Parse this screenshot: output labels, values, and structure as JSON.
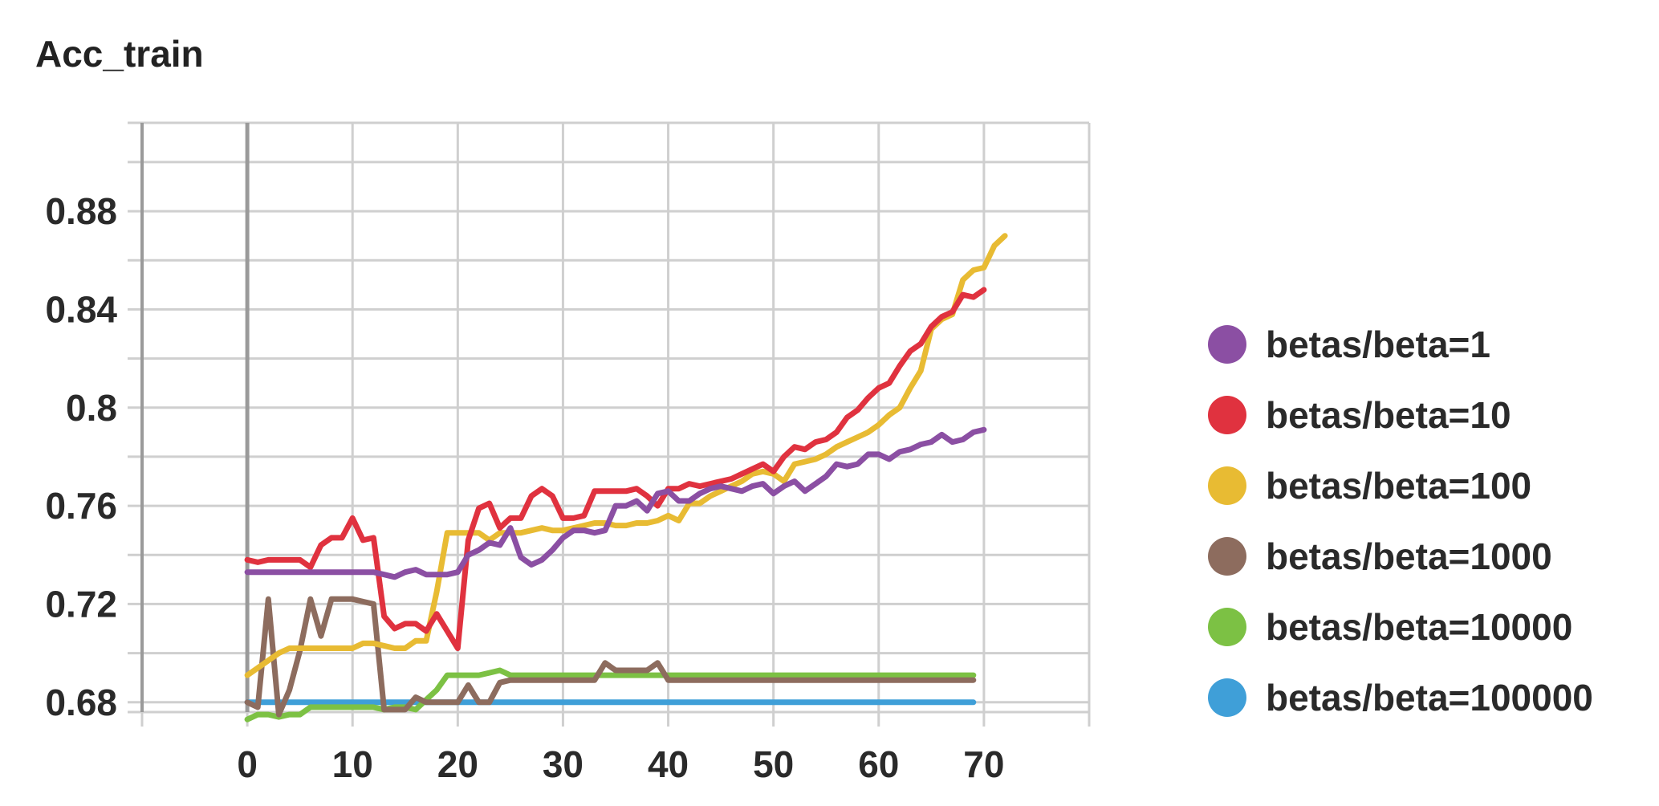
{
  "chart_data": {
    "type": "line",
    "title": "Acc_train",
    "xlabel": "",
    "ylabel": "",
    "xlim": [
      -10,
      80
    ],
    "ylim": [
      0.676,
      0.916
    ],
    "xticks": [
      0,
      10,
      20,
      30,
      40,
      50,
      60,
      70
    ],
    "xtick_labels": [
      "0",
      "10",
      "20",
      "30",
      "40",
      "50",
      "60",
      "70"
    ],
    "yticks": [
      0.68,
      0.72,
      0.76,
      0.8,
      0.84,
      0.88
    ],
    "ytick_labels": [
      "0.68",
      "0.72",
      "0.76",
      "0.8",
      "0.84",
      "0.88"
    ],
    "grid": true,
    "legend_position": "right",
    "series": [
      {
        "name": "betas/beta=1",
        "color": "#8b4fa3",
        "x0": 0,
        "values": [
          0.733,
          0.733,
          0.733,
          0.733,
          0.733,
          0.733,
          0.733,
          0.733,
          0.733,
          0.733,
          0.733,
          0.733,
          0.733,
          0.732,
          0.731,
          0.733,
          0.734,
          0.732,
          0.732,
          0.732,
          0.733,
          0.74,
          0.742,
          0.745,
          0.744,
          0.751,
          0.739,
          0.736,
          0.738,
          0.742,
          0.747,
          0.75,
          0.75,
          0.749,
          0.75,
          0.76,
          0.76,
          0.762,
          0.758,
          0.765,
          0.766,
          0.762,
          0.762,
          0.765,
          0.767,
          0.768,
          0.767,
          0.766,
          0.768,
          0.769,
          0.765,
          0.768,
          0.77,
          0.766,
          0.769,
          0.772,
          0.777,
          0.776,
          0.777,
          0.781,
          0.781,
          0.779,
          0.782,
          0.783,
          0.785,
          0.786,
          0.789,
          0.786,
          0.787,
          0.79,
          0.791
        ]
      },
      {
        "name": "betas/beta=10",
        "color": "#e0323f",
        "x0": 0,
        "values": [
          0.738,
          0.737,
          0.738,
          0.738,
          0.738,
          0.738,
          0.735,
          0.744,
          0.747,
          0.747,
          0.755,
          0.746,
          0.747,
          0.715,
          0.71,
          0.712,
          0.712,
          0.709,
          0.716,
          0.709,
          0.702,
          0.746,
          0.759,
          0.761,
          0.751,
          0.755,
          0.755,
          0.764,
          0.767,
          0.764,
          0.755,
          0.755,
          0.756,
          0.766,
          0.766,
          0.766,
          0.766,
          0.767,
          0.764,
          0.76,
          0.767,
          0.767,
          0.769,
          0.768,
          0.769,
          0.77,
          0.771,
          0.773,
          0.775,
          0.777,
          0.774,
          0.78,
          0.784,
          0.783,
          0.786,
          0.787,
          0.79,
          0.796,
          0.799,
          0.804,
          0.808,
          0.81,
          0.817,
          0.823,
          0.826,
          0.833,
          0.837,
          0.839,
          0.846,
          0.845,
          0.848
        ]
      },
      {
        "name": "betas/beta=100",
        "color": "#e8bb33",
        "x0": 0,
        "values": [
          0.691,
          0.694,
          0.697,
          0.7,
          0.702,
          0.702,
          0.702,
          0.702,
          0.702,
          0.702,
          0.702,
          0.704,
          0.704,
          0.703,
          0.702,
          0.702,
          0.705,
          0.705,
          0.725,
          0.749,
          0.749,
          0.749,
          0.749,
          0.746,
          0.749,
          0.749,
          0.749,
          0.75,
          0.751,
          0.75,
          0.75,
          0.751,
          0.752,
          0.753,
          0.753,
          0.752,
          0.752,
          0.753,
          0.753,
          0.754,
          0.756,
          0.754,
          0.761,
          0.761,
          0.764,
          0.766,
          0.768,
          0.77,
          0.773,
          0.774,
          0.773,
          0.77,
          0.777,
          0.778,
          0.779,
          0.781,
          0.784,
          0.786,
          0.788,
          0.79,
          0.793,
          0.797,
          0.8,
          0.808,
          0.815,
          0.832,
          0.836,
          0.838,
          0.852,
          0.856,
          0.857,
          0.866,
          0.87
        ]
      },
      {
        "name": "betas/beta=1000",
        "color": "#8d6c5e",
        "x0": 0,
        "values": [
          0.68,
          0.678,
          0.722,
          0.675,
          0.685,
          0.701,
          0.722,
          0.707,
          0.722,
          0.722,
          0.722,
          0.721,
          0.72,
          0.677,
          0.677,
          0.677,
          0.682,
          0.68,
          0.68,
          0.68,
          0.68,
          0.687,
          0.68,
          0.68,
          0.688,
          0.689,
          0.689,
          0.689,
          0.689,
          0.689,
          0.689,
          0.689,
          0.689,
          0.689,
          0.696,
          0.693,
          0.693,
          0.693,
          0.693,
          0.696,
          0.689,
          0.689,
          0.689,
          0.689,
          0.689,
          0.689,
          0.689,
          0.689,
          0.689,
          0.689,
          0.689,
          0.689,
          0.689,
          0.689,
          0.689,
          0.689,
          0.689,
          0.689,
          0.689,
          0.689,
          0.689,
          0.689,
          0.689,
          0.689,
          0.689,
          0.689,
          0.689,
          0.689,
          0.689,
          0.689
        ]
      },
      {
        "name": "betas/beta=10000",
        "color": "#7cc144",
        "x0": 0,
        "values": [
          0.673,
          0.675,
          0.675,
          0.674,
          0.675,
          0.675,
          0.678,
          0.678,
          0.678,
          0.678,
          0.678,
          0.678,
          0.678,
          0.677,
          0.678,
          0.678,
          0.677,
          0.681,
          0.685,
          0.691,
          0.691,
          0.691,
          0.691,
          0.692,
          0.693,
          0.691,
          0.691,
          0.691,
          0.691,
          0.691,
          0.691,
          0.691,
          0.691,
          0.691,
          0.691,
          0.691,
          0.691,
          0.691,
          0.691,
          0.691,
          0.691,
          0.691,
          0.691,
          0.691,
          0.691,
          0.691,
          0.691,
          0.691,
          0.691,
          0.691,
          0.691,
          0.691,
          0.691,
          0.691,
          0.691,
          0.691,
          0.691,
          0.691,
          0.691,
          0.691,
          0.691,
          0.691,
          0.691,
          0.691,
          0.691,
          0.691,
          0.691,
          0.691,
          0.691,
          0.691
        ]
      },
      {
        "name": "betas/beta=100000",
        "color": "#3f9fd8",
        "x0": 0,
        "values": [
          0.68,
          0.68,
          0.68,
          0.68,
          0.68,
          0.68,
          0.68,
          0.68,
          0.68,
          0.68,
          0.68,
          0.68,
          0.68,
          0.68,
          0.68,
          0.68,
          0.68,
          0.68,
          0.68,
          0.68,
          0.68,
          0.68,
          0.68,
          0.68,
          0.68,
          0.68,
          0.68,
          0.68,
          0.68,
          0.68,
          0.68,
          0.68,
          0.68,
          0.68,
          0.68,
          0.68,
          0.68,
          0.68,
          0.68,
          0.68,
          0.68,
          0.68,
          0.68,
          0.68,
          0.68,
          0.68,
          0.68,
          0.68,
          0.68,
          0.68,
          0.68,
          0.68,
          0.68,
          0.68,
          0.68,
          0.68,
          0.68,
          0.68,
          0.68,
          0.68,
          0.68,
          0.68,
          0.68,
          0.68,
          0.68,
          0.68,
          0.68,
          0.68,
          0.68,
          0.68
        ]
      }
    ]
  }
}
